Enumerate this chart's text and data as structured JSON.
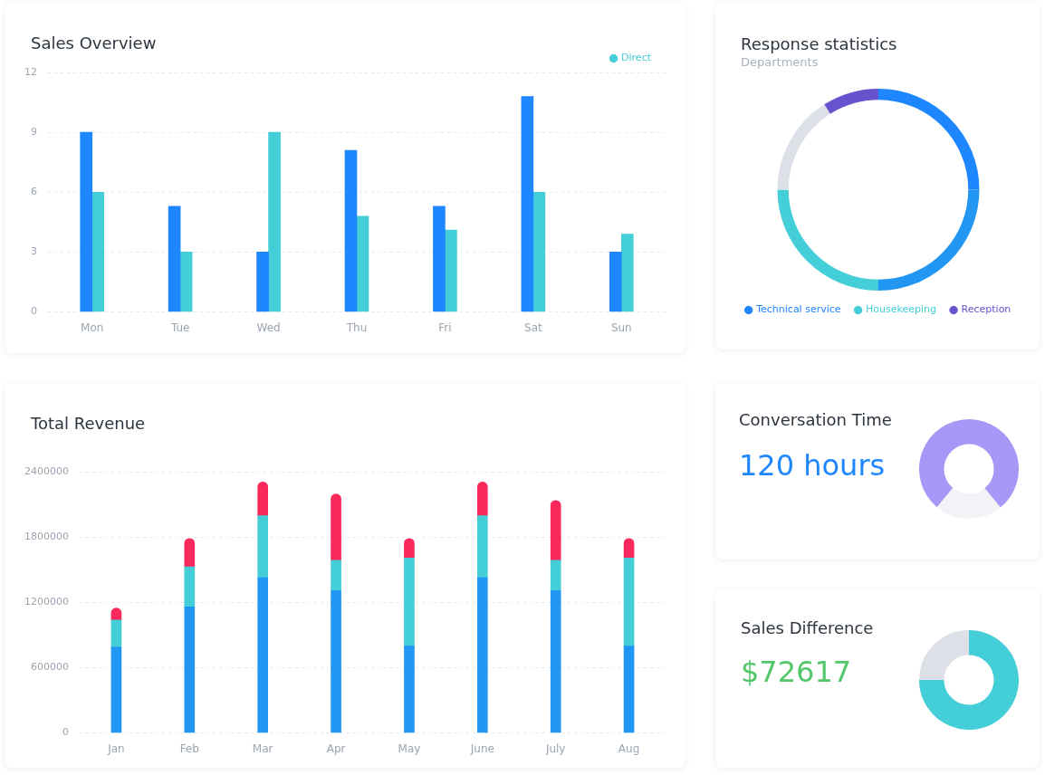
{
  "chart_data": [
    {
      "type": "bar",
      "title": "Sales Overview",
      "categories": [
        "Mon",
        "Tue",
        "Wed",
        "Thu",
        "Fri",
        "Sat",
        "Sun"
      ],
      "series": [
        {
          "color": "#1e86ff",
          "values": [
            9,
            5.3,
            3,
            8.1,
            5.3,
            10.8,
            3
          ]
        },
        {
          "name": "Direct",
          "color": "#43ced8",
          "values": [
            6,
            3,
            9,
            4.8,
            4.1,
            6,
            3.9
          ]
        }
      ],
      "ylim": [
        0,
        12
      ],
      "yticks": [
        0,
        3,
        6,
        9,
        12
      ],
      "grid": "y",
      "legend": "top right"
    },
    {
      "type": "donut",
      "title": "Response statistics",
      "subtitle": "Departments",
      "categories": [
        "Technical service",
        null,
        "Housekeeping",
        null,
        "Reception"
      ],
      "values": [
        25,
        25,
        25,
        16,
        9
      ],
      "colors": [
        "#1e86ff",
        "#2196f3",
        "#43ced8",
        "#dde1e7",
        "#6753ce"
      ],
      "legend": "bottom"
    },
    {
      "type": "bar",
      "title": "Total Revenue",
      "stacked": true,
      "categories": [
        "Jan",
        "Feb",
        "Mar",
        "Apr",
        "May",
        "June",
        "July",
        "Aug"
      ],
      "series": [
        {
          "color": "#2196f3",
          "values": [
            790000,
            1160000,
            1430000,
            1310000,
            800000,
            1430000,
            1310000,
            800000
          ]
        },
        {
          "color": "#43ced8",
          "values": [
            250000,
            370000,
            570000,
            280000,
            810000,
            570000,
            280000,
            810000
          ]
        },
        {
          "color": "#f9295b",
          "values": [
            110000,
            260000,
            310000,
            610000,
            180000,
            310000,
            550000,
            180000
          ]
        }
      ],
      "ylim": [
        0,
        2400000
      ],
      "yticks": [
        0,
        600000,
        1200000,
        1800000,
        2400000
      ],
      "grid": "y"
    },
    {
      "type": "donut",
      "title": "Conversation Time",
      "annotations": [
        "120 hours"
      ],
      "categories": [
        null,
        null
      ],
      "values": [
        78,
        22
      ],
      "colors": [
        "#a897f7",
        "#f2f3f7"
      ]
    },
    {
      "type": "donut",
      "title": "Sales Difference",
      "annotations": [
        "$72617"
      ],
      "categories": [
        null,
        null
      ],
      "values": [
        75,
        25
      ],
      "colors": [
        "#43ced8",
        "#dde1e7"
      ]
    }
  ]
}
